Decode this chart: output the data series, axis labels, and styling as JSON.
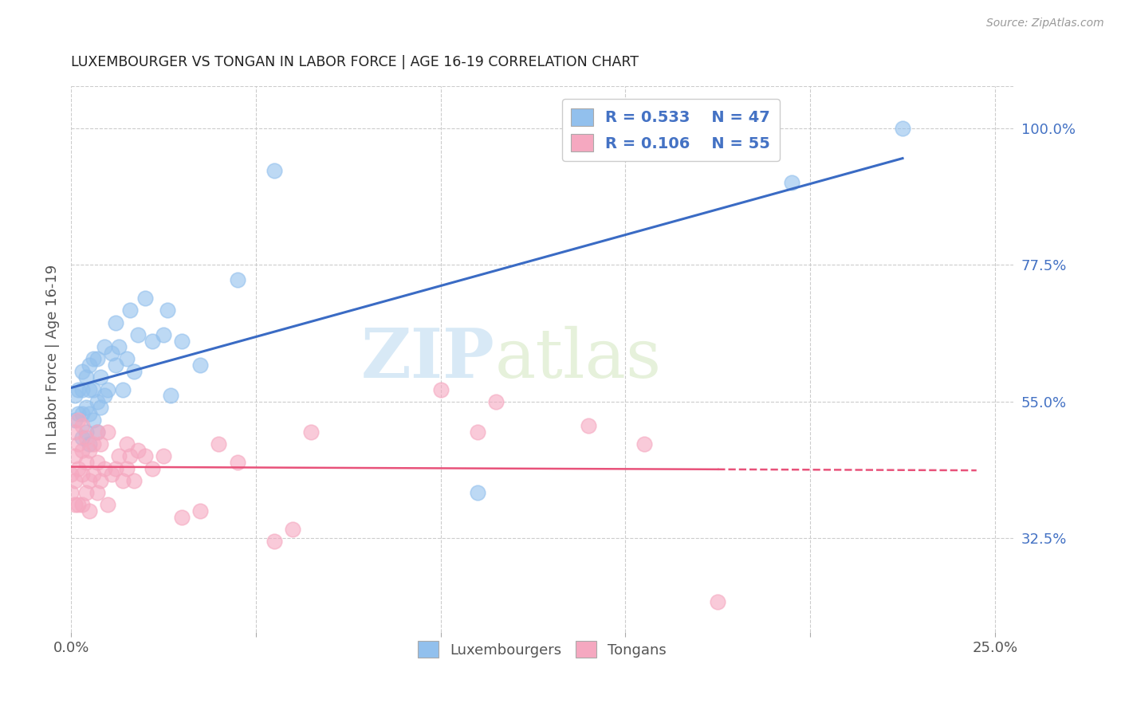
{
  "title": "LUXEMBOURGER VS TONGAN IN LABOR FORCE | AGE 16-19 CORRELATION CHART",
  "source": "Source: ZipAtlas.com",
  "ylabel": "In Labor Force | Age 16-19",
  "x_tick_positions": [
    0.0,
    0.05,
    0.1,
    0.15,
    0.2,
    0.25
  ],
  "x_tick_labels": [
    "0.0%",
    "",
    "",
    "",
    "",
    "25.0%"
  ],
  "y_tick_values_right": [
    1.0,
    0.775,
    0.55,
    0.325
  ],
  "y_tick_labels_right": [
    "100.0%",
    "77.5%",
    "55.0%",
    "32.5%"
  ],
  "x_lim": [
    0.0,
    0.255
  ],
  "y_lim": [
    0.17,
    1.07
  ],
  "legend_r1": "R = 0.533",
  "legend_n1": "N = 47",
  "legend_r2": "R = 0.106",
  "legend_n2": "N = 55",
  "color_blue": "#92C0ED",
  "color_pink": "#F5A8C0",
  "color_blue_line": "#3A6BC4",
  "color_pink_line": "#E8527A",
  "color_legend_text": "#4472C4",
  "watermark_zip": "ZIP",
  "watermark_atlas": "atlas",
  "lux_x": [
    0.001,
    0.001,
    0.002,
    0.002,
    0.003,
    0.003,
    0.003,
    0.003,
    0.004,
    0.004,
    0.004,
    0.005,
    0.005,
    0.005,
    0.005,
    0.006,
    0.006,
    0.006,
    0.007,
    0.007,
    0.007,
    0.008,
    0.008,
    0.009,
    0.009,
    0.01,
    0.011,
    0.012,
    0.012,
    0.013,
    0.014,
    0.015,
    0.016,
    0.017,
    0.018,
    0.02,
    0.022,
    0.025,
    0.026,
    0.027,
    0.03,
    0.035,
    0.045,
    0.055,
    0.11,
    0.195,
    0.225
  ],
  "lux_y": [
    0.52,
    0.56,
    0.53,
    0.57,
    0.49,
    0.53,
    0.57,
    0.6,
    0.5,
    0.54,
    0.59,
    0.48,
    0.53,
    0.57,
    0.61,
    0.52,
    0.57,
    0.62,
    0.5,
    0.55,
    0.62,
    0.54,
    0.59,
    0.56,
    0.64,
    0.57,
    0.63,
    0.61,
    0.68,
    0.64,
    0.57,
    0.62,
    0.7,
    0.6,
    0.66,
    0.72,
    0.65,
    0.66,
    0.7,
    0.56,
    0.65,
    0.61,
    0.75,
    0.93,
    0.4,
    0.91,
    1.0
  ],
  "ton_x": [
    0.0,
    0.0,
    0.001,
    0.001,
    0.001,
    0.001,
    0.002,
    0.002,
    0.002,
    0.002,
    0.003,
    0.003,
    0.003,
    0.003,
    0.004,
    0.004,
    0.004,
    0.005,
    0.005,
    0.005,
    0.006,
    0.006,
    0.007,
    0.007,
    0.007,
    0.008,
    0.008,
    0.009,
    0.01,
    0.01,
    0.011,
    0.012,
    0.013,
    0.014,
    0.015,
    0.015,
    0.016,
    0.017,
    0.018,
    0.02,
    0.022,
    0.025,
    0.03,
    0.035,
    0.04,
    0.045,
    0.055,
    0.06,
    0.065,
    0.1,
    0.11,
    0.115,
    0.14,
    0.155,
    0.175
  ],
  "ton_y": [
    0.4,
    0.43,
    0.38,
    0.42,
    0.46,
    0.5,
    0.38,
    0.44,
    0.48,
    0.52,
    0.38,
    0.43,
    0.47,
    0.51,
    0.4,
    0.45,
    0.49,
    0.37,
    0.42,
    0.47,
    0.43,
    0.48,
    0.4,
    0.45,
    0.5,
    0.42,
    0.48,
    0.44,
    0.38,
    0.5,
    0.43,
    0.44,
    0.46,
    0.42,
    0.44,
    0.48,
    0.46,
    0.42,
    0.47,
    0.46,
    0.44,
    0.46,
    0.36,
    0.37,
    0.48,
    0.45,
    0.32,
    0.34,
    0.5,
    0.57,
    0.5,
    0.55,
    0.51,
    0.48,
    0.22
  ]
}
